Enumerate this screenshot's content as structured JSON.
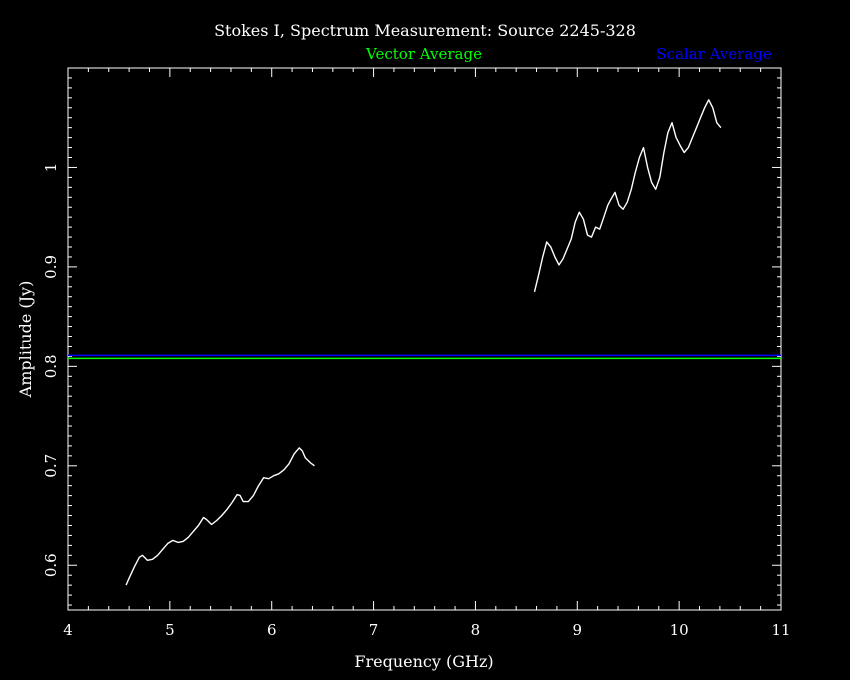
{
  "chart_data": {
    "type": "line",
    "title": "Stokes I, Spectrum Measurement: Source 2245-328",
    "xlabel": "Frequency (GHz)",
    "ylabel": "Amplitude (Jy)",
    "xlim": [
      4,
      11
    ],
    "ylim": [
      0.555,
      1.1
    ],
    "x_ticks": [
      4,
      5,
      6,
      7,
      8,
      9,
      10,
      11
    ],
    "y_ticks": [
      0.6,
      0.7,
      0.8,
      0.9,
      1
    ],
    "x_tick_labels": [
      "4",
      "5",
      "6",
      "7",
      "8",
      "9",
      "10",
      "11"
    ],
    "y_tick_labels": [
      "0.6",
      "0.7",
      "0.8",
      "0.9",
      "1"
    ],
    "grid": false,
    "legend_placement": "top",
    "legend": [
      {
        "label": "Vector Average",
        "color": "#00ff00"
      },
      {
        "label": "Scalar Average",
        "color": "#0000ff"
      }
    ],
    "reference_lines": [
      {
        "name": "Vector Average",
        "y": 0.808,
        "color": "#00ff00"
      },
      {
        "name": "Scalar Average",
        "y": 0.811,
        "color": "#0000ff"
      }
    ],
    "series": [
      {
        "color": "#ffffff",
        "segments": [
          {
            "x": [
              4.57,
              4.6,
              4.65,
              4.7,
              4.73,
              4.78,
              4.83,
              4.88,
              4.93,
              4.98,
              5.03,
              5.08,
              5.13,
              5.18,
              5.23,
              5.28,
              5.33,
              5.36,
              5.41,
              5.46,
              5.51,
              5.56,
              5.61,
              5.66,
              5.69,
              5.72,
              5.77,
              5.82,
              5.87,
              5.92,
              5.97,
              6.02,
              6.07,
              6.12,
              6.17,
              6.22,
              6.27,
              6.3,
              6.33,
              6.38,
              6.42
            ],
            "y": [
              0.58,
              0.587,
              0.598,
              0.608,
              0.61,
              0.605,
              0.606,
              0.61,
              0.616,
              0.622,
              0.625,
              0.623,
              0.624,
              0.628,
              0.634,
              0.64,
              0.648,
              0.646,
              0.641,
              0.645,
              0.65,
              0.656,
              0.663,
              0.671,
              0.67,
              0.664,
              0.664,
              0.67,
              0.68,
              0.688,
              0.687,
              0.69,
              0.692,
              0.696,
              0.702,
              0.712,
              0.718,
              0.715,
              0.708,
              0.703,
              0.7
            ]
          },
          {
            "x": [
              8.58,
              8.62,
              8.66,
              8.7,
              8.74,
              8.78,
              8.82,
              8.86,
              8.9,
              8.94,
              8.98,
              9.02,
              9.06,
              9.1,
              9.14,
              9.18,
              9.22,
              9.26,
              9.3,
              9.33,
              9.37,
              9.41,
              9.45,
              9.49,
              9.53,
              9.57,
              9.61,
              9.65,
              9.69,
              9.73,
              9.77,
              9.81,
              9.85,
              9.89,
              9.93,
              9.97,
              10.01,
              10.05,
              10.09,
              10.13,
              10.17,
              10.21,
              10.25,
              10.29,
              10.33,
              10.37,
              10.41
            ],
            "y": [
              0.875,
              0.892,
              0.91,
              0.925,
              0.92,
              0.91,
              0.902,
              0.908,
              0.918,
              0.928,
              0.945,
              0.955,
              0.948,
              0.932,
              0.93,
              0.94,
              0.938,
              0.95,
              0.962,
              0.968,
              0.975,
              0.962,
              0.958,
              0.965,
              0.978,
              0.995,
              1.01,
              1.02,
              1.0,
              0.985,
              0.978,
              0.99,
              1.015,
              1.035,
              1.045,
              1.03,
              1.022,
              1.015,
              1.02,
              1.03,
              1.04,
              1.05,
              1.06,
              1.068,
              1.06,
              1.045,
              1.04
            ]
          }
        ]
      }
    ]
  }
}
